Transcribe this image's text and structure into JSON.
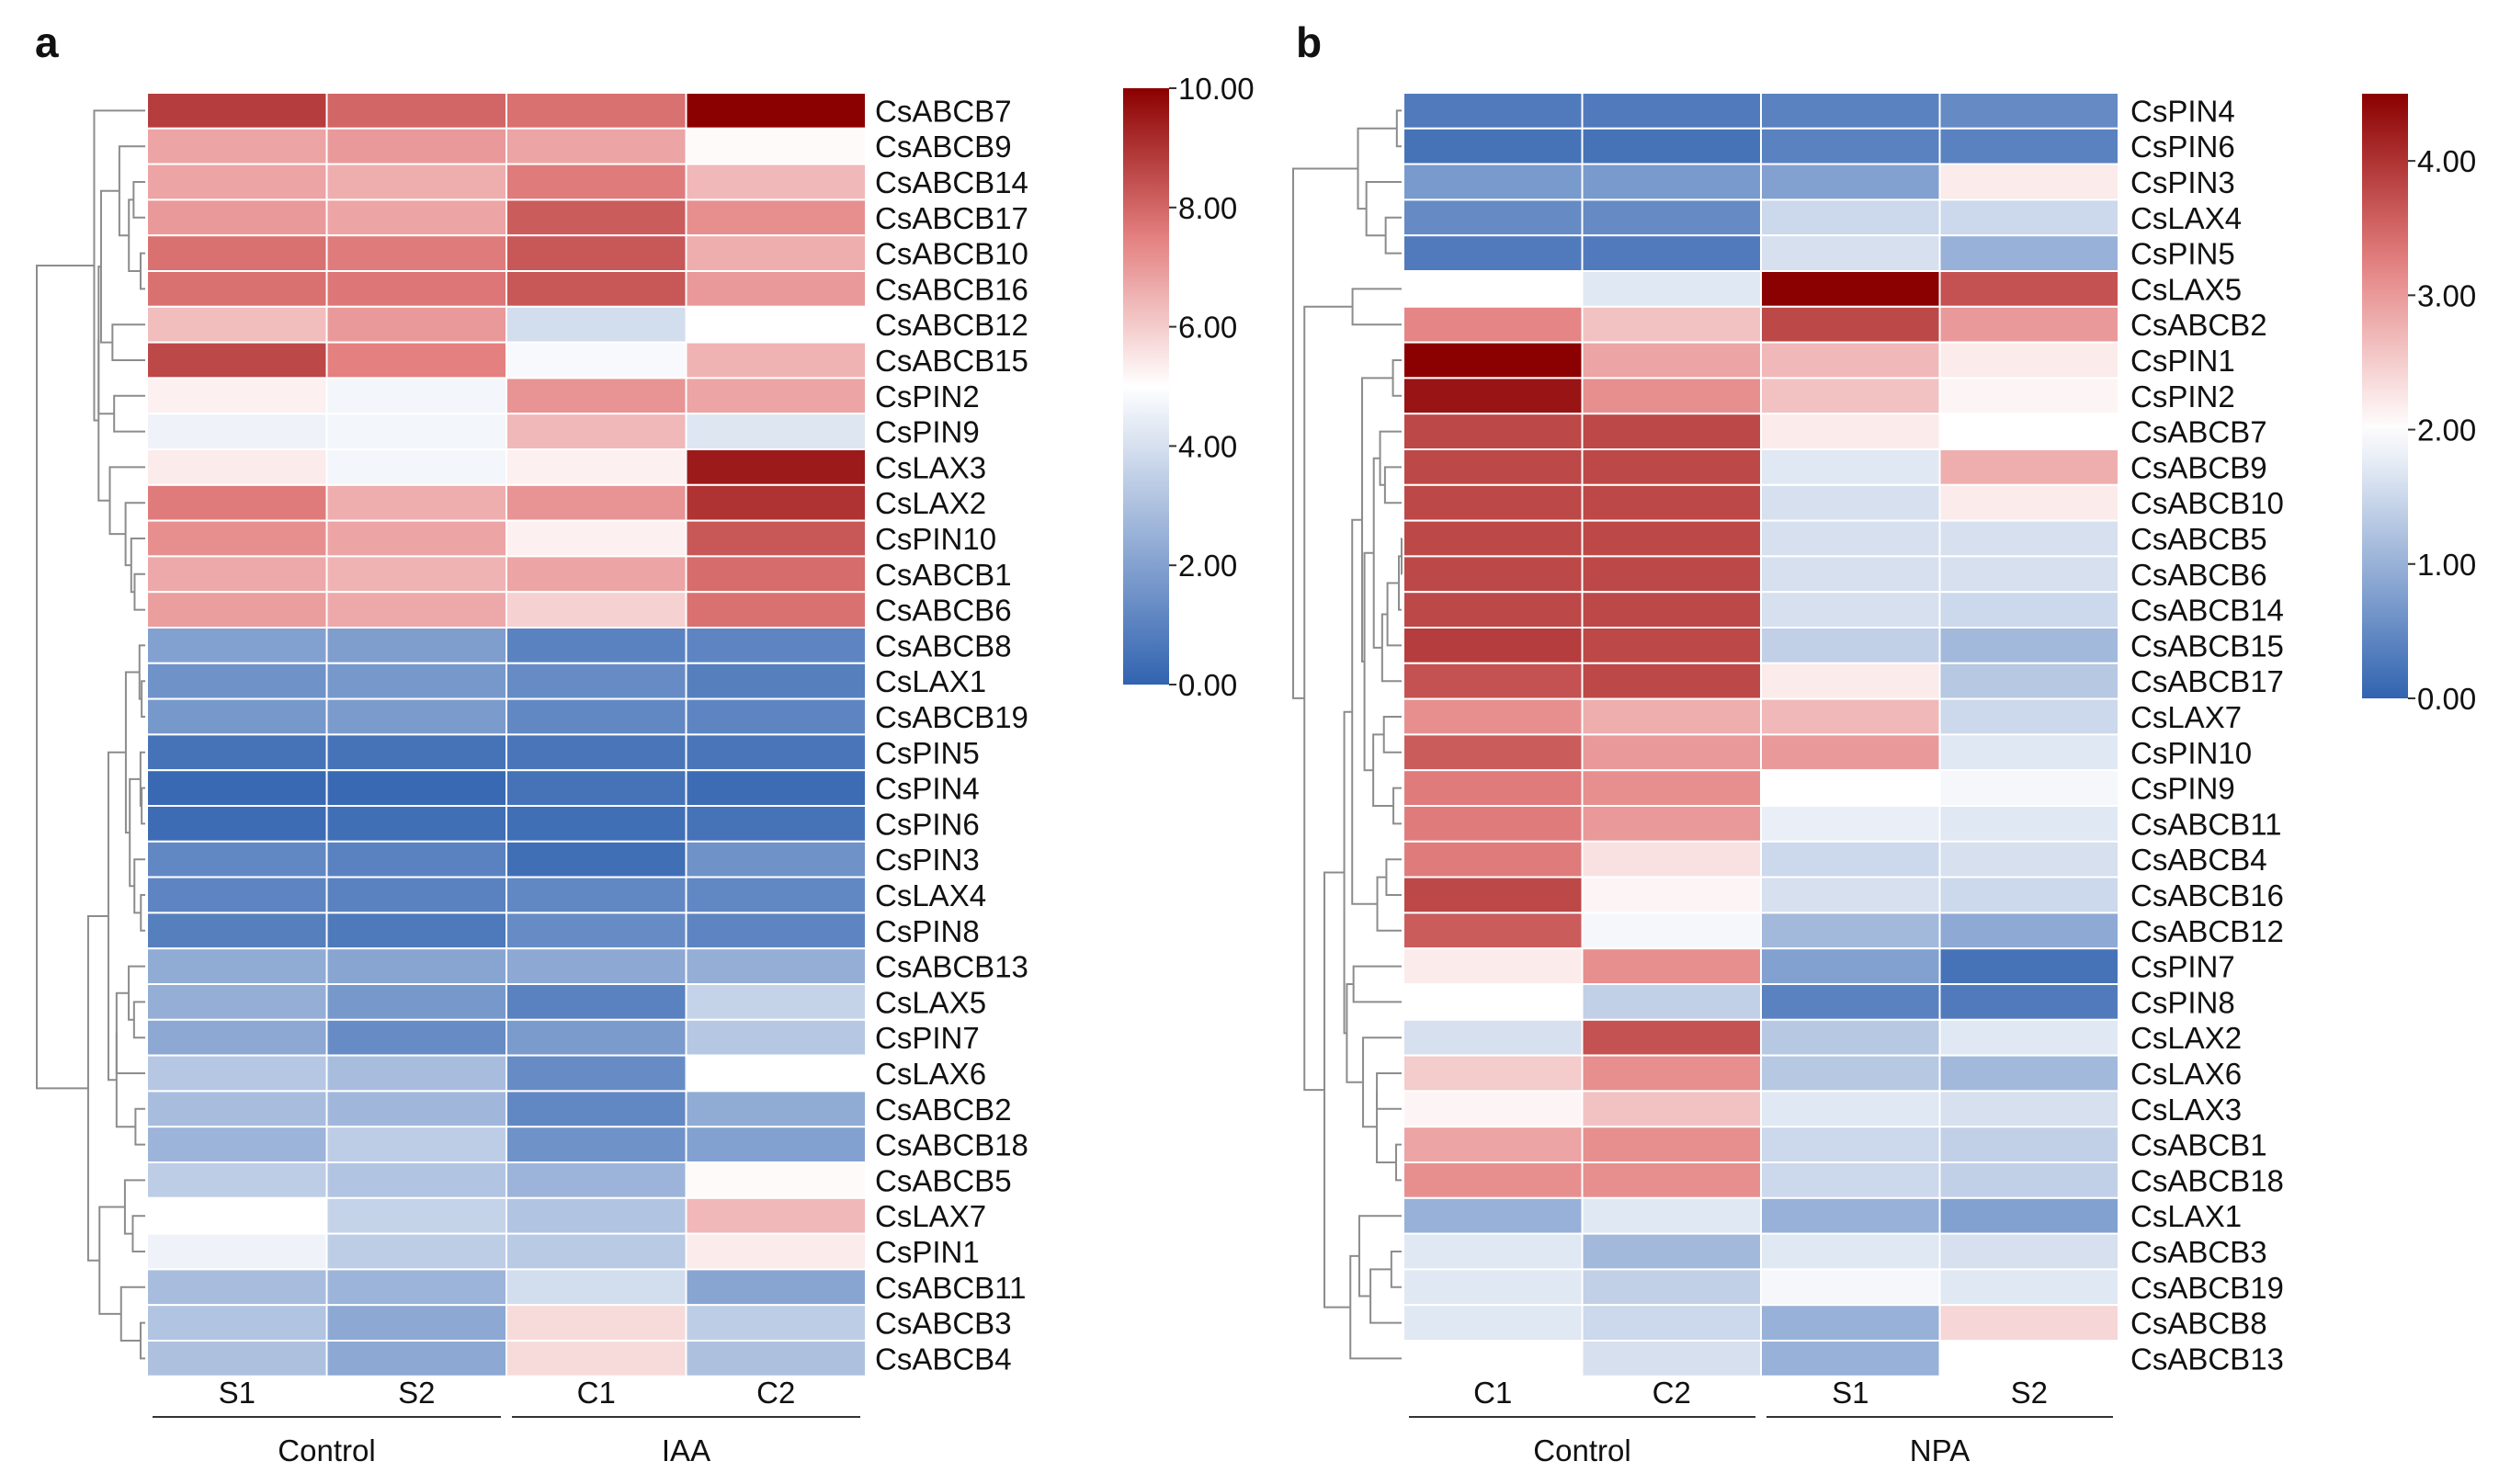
{
  "chart_data": [
    {
      "type": "heatmap",
      "panel": "a",
      "columns": [
        "S1",
        "S2",
        "C1",
        "C2"
      ],
      "groups": [
        {
          "label": "Control",
          "span": [
            0,
            1
          ]
        },
        {
          "label": "IAA",
          "span": [
            2,
            3
          ]
        }
      ],
      "colorbar": {
        "min": 0,
        "max": 10,
        "mid": 5.0,
        "ticks": [
          "10.00",
          "8.00",
          "6.00",
          "4.00",
          "2.00",
          "0.00"
        ],
        "tick_values": [
          10,
          8,
          6,
          4,
          2,
          0
        ]
      },
      "rows": [
        "CsABCB7",
        "CsABCB9",
        "CsABCB14",
        "CsABCB17",
        "CsABCB10",
        "CsABCB16",
        "CsABCB12",
        "CsABCB15",
        "CsPIN2",
        "CsPIN9",
        "CsLAX3",
        "CsLAX2",
        "CsPIN10",
        "CsABCB1",
        "CsABCB6",
        "CsABCB8",
        "CsLAX1",
        "CsABCB19",
        "CsPIN5",
        "CsPIN4",
        "CsPIN6",
        "CsPIN3",
        "CsLAX4",
        "CsPIN8",
        "CsABCB13",
        "CsLAX5",
        "CsPIN7",
        "CsLAX6",
        "CsABCB2",
        "CsABCB18",
        "CsABCB5",
        "CsLAX7",
        "CsPIN1",
        "CsABCB11",
        "CsABCB3",
        "CsABCB4"
      ],
      "values": [
        [
          8.8,
          8.0,
          7.8,
          10.0
        ],
        [
          6.8,
          7.0,
          6.8,
          5.1
        ],
        [
          6.8,
          6.6,
          7.6,
          6.4
        ],
        [
          7.0,
          6.8,
          8.2,
          7.2
        ],
        [
          7.8,
          7.6,
          8.3,
          6.6
        ],
        [
          7.8,
          7.7,
          8.3,
          7.0
        ],
        [
          6.3,
          7.0,
          3.9,
          5.0
        ],
        [
          8.6,
          7.5,
          4.8,
          6.5
        ],
        [
          5.3,
          4.7,
          7.1,
          6.8
        ],
        [
          4.6,
          4.7,
          6.4,
          4.2
        ],
        [
          5.4,
          4.7,
          5.3,
          9.5
        ],
        [
          7.6,
          6.6,
          7.1,
          9.0
        ],
        [
          7.2,
          6.8,
          5.3,
          8.3
        ],
        [
          6.7,
          6.5,
          6.8,
          7.9
        ],
        [
          6.9,
          6.7,
          5.9,
          7.8
        ],
        [
          2.0,
          1.9,
          1.0,
          1.1
        ],
        [
          1.5,
          1.7,
          1.3,
          0.9
        ],
        [
          1.7,
          1.8,
          1.2,
          1.1
        ],
        [
          0.5,
          0.5,
          0.6,
          0.6
        ],
        [
          0.2,
          0.2,
          0.5,
          0.3
        ],
        [
          0.3,
          0.4,
          0.4,
          0.5
        ],
        [
          1.2,
          1.0,
          0.4,
          1.5
        ],
        [
          1.1,
          1.0,
          1.2,
          1.2
        ],
        [
          0.9,
          0.7,
          1.3,
          1.1
        ],
        [
          2.3,
          2.1,
          2.2,
          2.4
        ],
        [
          2.4,
          1.7,
          1.0,
          3.6
        ],
        [
          2.2,
          1.3,
          1.8,
          3.2
        ],
        [
          3.2,
          2.9,
          1.3,
          5.0
        ],
        [
          2.9,
          2.7,
          1.2,
          2.3
        ],
        [
          2.6,
          3.4,
          1.5,
          2.0
        ],
        [
          3.4,
          3.1,
          2.6,
          5.1
        ],
        [
          5.0,
          3.6,
          3.1,
          6.4
        ],
        [
          4.6,
          3.4,
          3.3,
          5.4
        ],
        [
          2.9,
          2.6,
          3.9,
          2.1
        ],
        [
          3.1,
          2.2,
          5.7,
          3.4
        ],
        [
          3.0,
          2.2,
          5.7,
          3.0
        ]
      ]
    },
    {
      "type": "heatmap",
      "panel": "b",
      "columns": [
        "C1",
        "C2",
        "S1",
        "S2"
      ],
      "groups": [
        {
          "label": "Control",
          "span": [
            0,
            1
          ]
        },
        {
          "label": "NPA",
          "span": [
            2,
            3
          ]
        }
      ],
      "colorbar": {
        "min": 0,
        "max": 4.5,
        "mid": 2.0,
        "ticks": [
          "4.00",
          "3.00",
          "2.00",
          "1.00",
          "0.00"
        ],
        "tick_values": [
          4,
          3,
          2,
          1,
          0
        ]
      },
      "rows": [
        "CsPIN4",
        "CsPIN6",
        "CsPIN3",
        "CsLAX4",
        "CsPIN5",
        "CsLAX5",
        "CsABCB2",
        "CsPIN1",
        "CsPIN2",
        "CsABCB7",
        "CsABCB9",
        "CsABCB10",
        "CsABCB5",
        "CsABCB6",
        "CsABCB14",
        "CsABCB15",
        "CsABCB17",
        "CsLAX7",
        "CsPIN10",
        "CsPIN9",
        "CsABCB11",
        "CsABCB4",
        "CsABCB16",
        "CsABCB12",
        "CsPIN7",
        "CsPIN8",
        "CsLAX2",
        "CsLAX6",
        "CsLAX3",
        "CsABCB1",
        "CsABCB18",
        "CsLAX1",
        "CsABCB3",
        "CsABCB19",
        "CsABCB8",
        "CsABCB13"
      ],
      "values": [
        [
          0.3,
          0.3,
          0.4,
          0.5
        ],
        [
          0.2,
          0.2,
          0.4,
          0.4
        ],
        [
          0.7,
          0.7,
          0.8,
          2.2
        ],
        [
          0.5,
          0.5,
          1.5,
          1.5
        ],
        [
          0.3,
          0.3,
          1.6,
          1.0
        ],
        [
          2.0,
          1.7,
          4.5,
          3.7
        ],
        [
          3.2,
          2.6,
          3.8,
          3.0
        ],
        [
          4.5,
          2.9,
          2.7,
          2.2
        ],
        [
          4.3,
          3.1,
          2.6,
          2.1
        ],
        [
          3.8,
          3.8,
          2.2,
          2.0
        ],
        [
          3.8,
          3.8,
          1.7,
          2.8
        ],
        [
          3.8,
          3.8,
          1.6,
          2.2
        ],
        [
          3.8,
          3.8,
          1.6,
          1.6
        ],
        [
          3.8,
          3.8,
          1.6,
          1.6
        ],
        [
          3.8,
          3.8,
          1.6,
          1.5
        ],
        [
          3.9,
          3.8,
          1.4,
          1.1
        ],
        [
          3.7,
          3.8,
          2.2,
          1.3
        ],
        [
          3.1,
          2.8,
          2.7,
          1.5
        ],
        [
          3.6,
          3.0,
          3.0,
          1.7
        ],
        [
          3.3,
          3.1,
          2.0,
          1.9
        ],
        [
          3.3,
          3.0,
          1.8,
          1.7
        ],
        [
          3.3,
          2.3,
          1.5,
          1.6
        ],
        [
          3.8,
          2.1,
          1.6,
          1.5
        ],
        [
          3.6,
          1.9,
          1.1,
          0.9
        ],
        [
          2.2,
          3.1,
          0.8,
          0.2
        ],
        [
          2.0,
          1.4,
          0.4,
          0.3
        ],
        [
          1.6,
          3.7,
          1.3,
          1.7
        ],
        [
          2.5,
          3.1,
          1.3,
          1.1
        ],
        [
          2.1,
          2.6,
          1.7,
          1.6
        ],
        [
          2.9,
          3.1,
          1.5,
          1.4
        ],
        [
          3.1,
          3.1,
          1.5,
          1.4
        ],
        [
          1.0,
          1.7,
          1.0,
          0.8
        ],
        [
          1.7,
          1.1,
          1.7,
          1.6
        ],
        [
          1.7,
          1.4,
          1.9,
          1.7
        ],
        [
          1.7,
          1.5,
          1.0,
          2.4
        ],
        [
          2.0,
          1.6,
          1.0,
          null
        ]
      ]
    }
  ]
}
